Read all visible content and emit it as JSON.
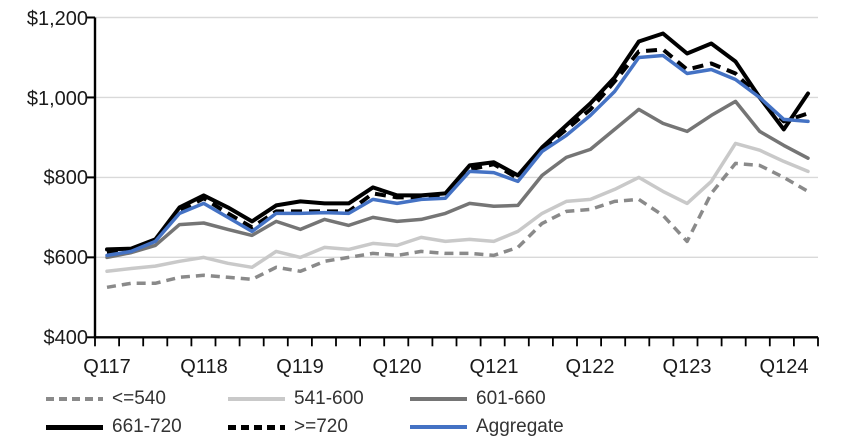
{
  "chart_data": {
    "type": "line",
    "title": "",
    "grid": true,
    "legend_position": "bottom",
    "x_axis": {
      "tick_labels": [
        "Q117",
        "Q118",
        "Q119",
        "Q120",
        "Q121",
        "Q122",
        "Q123",
        "Q124"
      ],
      "points": [
        "2017Q1",
        "2017Q2",
        "2017Q3",
        "2017Q4",
        "2018Q1",
        "2018Q2",
        "2018Q3",
        "2018Q4",
        "2019Q1",
        "2019Q2",
        "2019Q3",
        "2019Q4",
        "2020Q1",
        "2020Q2",
        "2020Q3",
        "2020Q4",
        "2021Q1",
        "2021Q2",
        "2021Q3",
        "2021Q4",
        "2022Q1",
        "2022Q2",
        "2022Q3",
        "2022Q4",
        "2023Q1",
        "2023Q2",
        "2023Q3",
        "2023Q4",
        "2024Q1",
        "2024Q2"
      ]
    },
    "y_axis": {
      "tick_labels": [
        "$400",
        "$600",
        "$800",
        "$1,000",
        "$1,200"
      ],
      "min": 400,
      "max": 1200,
      "step": 200,
      "unit": "$"
    },
    "colors": {
      "grid": "#d9d9d9",
      "axis": "#000000",
      "text": "#1a1a1a",
      "accent_blue": "#4472c4"
    },
    "series": [
      {
        "name": "<=540",
        "color": "#8a8a8a",
        "dash": true,
        "values": [
          525,
          535,
          535,
          550,
          555,
          550,
          545,
          575,
          565,
          590,
          600,
          610,
          605,
          615,
          610,
          610,
          605,
          625,
          685,
          715,
          720,
          740,
          745,
          705,
          640,
          760,
          835,
          830,
          800,
          765
        ]
      },
      {
        "name": "541-600",
        "color": "#c9c9c9",
        "dash": false,
        "values": [
          565,
          572,
          578,
          590,
          600,
          585,
          575,
          615,
          600,
          625,
          620,
          635,
          630,
          650,
          640,
          645,
          640,
          665,
          710,
          740,
          745,
          770,
          800,
          765,
          735,
          790,
          885,
          868,
          840,
          815
        ]
      },
      {
        "name": "601-660",
        "color": "#757575",
        "dash": false,
        "values": [
          600,
          612,
          630,
          682,
          686,
          670,
          655,
          690,
          670,
          695,
          680,
          700,
          690,
          695,
          710,
          735,
          728,
          730,
          805,
          850,
          870,
          920,
          970,
          935,
          915,
          955,
          990,
          915,
          880,
          848
        ]
      },
      {
        "name": "661-720",
        "color": "#000000",
        "dash": false,
        "values": [
          620,
          622,
          645,
          725,
          755,
          725,
          690,
          730,
          740,
          735,
          735,
          775,
          755,
          755,
          760,
          830,
          838,
          805,
          875,
          930,
          985,
          1050,
          1140,
          1160,
          1110,
          1135,
          1090,
          1000,
          920,
          1010
        ]
      },
      {
        "name": ">=720",
        "color": "#000000",
        "dash": true,
        "values": [
          612,
          618,
          642,
          715,
          748,
          710,
          675,
          715,
          715,
          715,
          715,
          760,
          750,
          750,
          755,
          820,
          833,
          798,
          870,
          920,
          970,
          1040,
          1115,
          1120,
          1070,
          1085,
          1060,
          1000,
          940,
          960
        ]
      },
      {
        "name": "Aggregate",
        "color": "#4472c4",
        "dash": false,
        "values": [
          605,
          615,
          640,
          710,
          735,
          700,
          665,
          710,
          710,
          712,
          710,
          745,
          735,
          745,
          748,
          815,
          812,
          790,
          865,
          905,
          955,
          1015,
          1100,
          1105,
          1060,
          1070,
          1045,
          1000,
          945,
          940
        ]
      }
    ]
  }
}
